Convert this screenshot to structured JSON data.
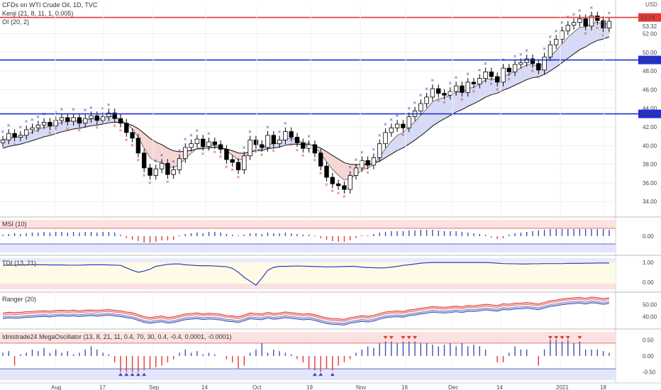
{
  "header": {
    "title": "CFDs on WTI Crude Oil, 1D, TVC",
    "indicator1": "Kenji (21, 8, 11, 1, 0.005)",
    "indicator2": "OI (20, 2)",
    "currency": "USD"
  },
  "panes": [
    {
      "name": "MSI (10)"
    },
    {
      "name": "TDI (13, 21)"
    },
    {
      "name": "Ranger (20)"
    },
    {
      "name": "Idnistrade24 MegaOscillator (13, 8, 21, 11, 0.4, 70, 30, 0.4, -0.4, 0.0001, -0.0001)"
    }
  ],
  "colors": {
    "up": "#ffffff",
    "down": "#000000",
    "level": "#1f2fd6",
    "resistance": "#e53935",
    "buy": "#3f51b5",
    "sell": "#e53935",
    "cloud_bull": "#d6daf5",
    "cloud_bear": "#f6d5d5"
  },
  "chart_data": {
    "type": "candlestick",
    "x_labels": [
      "Aug",
      "17",
      "Sep",
      "14",
      "Oct",
      "19",
      "Nov",
      "16",
      "Dec",
      "14",
      "2021",
      "18"
    ],
    "y_ticks": [
      34.0,
      36.0,
      38.0,
      40.0,
      42.0,
      44.0,
      46.0,
      48.0,
      50.0,
      52.0
    ],
    "ylim": [
      32.8,
      55.0
    ],
    "levels": [
      {
        "value": 53.74,
        "label": "53.74",
        "color": "#e53935"
      },
      {
        "value": 49.18,
        "label": "49.18",
        "color": "#1f2fd6"
      },
      {
        "value": 43.4,
        "label": "43.40",
        "color": "#1f2fd6"
      }
    ],
    "last_price": "53.32",
    "close": [
      40.6,
      41.3,
      40.9,
      41.1,
      41.7,
      41.9,
      42.2,
      42.5,
      42.1,
      42.7,
      43.0,
      42.6,
      43.0,
      42.4,
      42.9,
      43.2,
      42.7,
      43.1,
      43.5,
      42.9,
      42.4,
      41.4,
      40.8,
      39.2,
      37.6,
      36.8,
      37.5,
      38.1,
      36.9,
      37.4,
      38.6,
      39.8,
      40.2,
      40.7,
      39.9,
      40.4,
      40.1,
      39.6,
      38.5,
      38.2,
      37.4,
      38.9,
      40.6,
      40.1,
      39.8,
      41.1,
      40.2,
      40.6,
      41.5,
      40.9,
      40.3,
      39.7,
      40.1,
      39.2,
      37.8,
      36.6,
      35.9,
      35.7,
      35.3,
      36.8,
      37.6,
      38.4,
      37.9,
      38.7,
      40.2,
      41.4,
      41.9,
      42.3,
      41.9,
      43.1,
      43.7,
      44.5,
      45.2,
      46.1,
      45.6,
      45.4,
      45.8,
      46.4,
      45.7,
      46.8,
      46.6,
      47.2,
      47.9,
      47.4,
      46.8,
      48.3,
      47.9,
      48.7,
      48.9,
      49.3,
      48.8,
      48.1,
      49.5,
      50.8,
      51.4,
      52.3,
      52.9,
      53.2,
      53.6,
      52.8,
      53.9,
      53.4,
      52.6,
      53.32
    ],
    "msi": [
      0.2,
      0.3,
      0.4,
      0.3,
      0.4,
      0.5,
      0.5,
      0.6,
      0.5,
      0.6,
      0.6,
      0.5,
      0.6,
      0.5,
      0.6,
      0.6,
      0.5,
      0.6,
      0.6,
      0.5,
      0.2,
      -0.3,
      -0.5,
      -0.7,
      -0.9,
      -0.9,
      -0.8,
      -0.6,
      -0.6,
      -0.5,
      0.1,
      0.3,
      0.4,
      0.5,
      0.4,
      0.6,
      0.6,
      0.5,
      0.3,
      0.2,
      0.1,
      0.2,
      0.4,
      0.4,
      0.3,
      0.5,
      0.4,
      0.4,
      0.5,
      0.4,
      0.3,
      0.2,
      0.2,
      0.1,
      -0.3,
      -0.5,
      -0.7,
      -0.8,
      -0.8,
      -0.6,
      -0.3,
      0.1,
      0.1,
      0.3,
      0.5,
      0.6,
      0.7,
      0.7,
      0.7,
      0.8,
      0.8,
      0.9,
      0.9,
      0.9,
      0.8,
      0.7,
      0.7,
      0.7,
      0.6,
      0.5,
      0.4,
      0.3,
      0.2,
      -0.2,
      -0.4,
      -0.3,
      0.2,
      0.4,
      0.5,
      0.6,
      0.7,
      0.8,
      0.9,
      1.0,
      1.0,
      1.0,
      1.0,
      1.0,
      1.0,
      1.0,
      1.0,
      1.0,
      1.0,
      0.9
    ],
    "tdi": [
      0.85,
      0.86,
      0.86,
      0.87,
      0.87,
      0.88,
      0.88,
      0.88,
      0.87,
      0.87,
      0.87,
      0.86,
      0.86,
      0.86,
      0.87,
      0.88,
      0.88,
      0.88,
      0.87,
      0.86,
      0.85,
      0.72,
      0.6,
      0.5,
      0.56,
      0.66,
      0.8,
      0.85,
      0.9,
      0.92,
      0.92,
      0.88,
      0.86,
      0.84,
      0.83,
      0.83,
      0.82,
      0.8,
      0.78,
      0.7,
      0.5,
      0.25,
      0.05,
      -0.15,
      0.2,
      0.6,
      0.75,
      0.8,
      0.8,
      0.81,
      0.82,
      0.81,
      0.8,
      0.79,
      0.78,
      0.77,
      0.77,
      0.78,
      0.79,
      0.8,
      0.79,
      0.76,
      0.74,
      0.73,
      0.72,
      0.73,
      0.76,
      0.8,
      0.85,
      0.88,
      0.92,
      0.96,
      0.98,
      0.99,
      0.99,
      0.99,
      0.99,
      0.99,
      0.99,
      0.99,
      0.99,
      0.99,
      0.99,
      0.98,
      0.96,
      0.94,
      0.93,
      0.93,
      0.92,
      0.92,
      0.93,
      0.93,
      0.94,
      0.94,
      0.94,
      0.94,
      0.95,
      0.95,
      0.95,
      0.96,
      0.96,
      0.97,
      0.97,
      0.97
    ],
    "ranger_ylim": [
      32.0,
      58.0
    ],
    "ranger_ticks": [
      40.0,
      50.0
    ],
    "mega": [
      0.1,
      0.15,
      -0.3,
      0.05,
      0.1,
      0.2,
      0.15,
      0.25,
      0.1,
      0.2,
      0.1,
      0.15,
      0.05,
      0.1,
      0.2,
      0.3,
      0.2,
      0.1,
      0.05,
      -0.2,
      -0.5,
      -0.5,
      -0.5,
      -0.5,
      -0.45,
      -0.4,
      -0.35,
      -0.3,
      -0.2,
      -0.1,
      0.1,
      0.2,
      0.1,
      0.15,
      0.05,
      0.1,
      0.05,
      0.0,
      -0.1,
      -0.2,
      -0.4,
      -0.3,
      0.1,
      0.2,
      0.4,
      0.1,
      0.2,
      0.15,
      0.1,
      0.05,
      -0.1,
      -0.2,
      -0.4,
      -0.45,
      -0.5,
      -0.4,
      -0.45,
      -0.3,
      -0.2,
      -0.1,
      0.1,
      0.2,
      0.3,
      0.25,
      0.4,
      0.45,
      0.45,
      0.4,
      0.45,
      0.45,
      0.45,
      0.4,
      0.4,
      0.35,
      0.3,
      0.35,
      0.4,
      0.3,
      0.4,
      0.3,
      0.35,
      0.3,
      0.2,
      0.0,
      -0.2,
      -0.2,
      0.1,
      0.3,
      0.2,
      0.2,
      0.0,
      -0.3,
      0.2,
      0.5,
      0.5,
      0.45,
      0.5,
      0.4,
      0.45,
      0.2,
      0.2,
      0.2,
      0.15,
      0.1
    ],
    "mega_ylim": [
      -0.75,
      0.75
    ],
    "mega_ticks": [
      0.5,
      0.0,
      -0.5
    ]
  }
}
